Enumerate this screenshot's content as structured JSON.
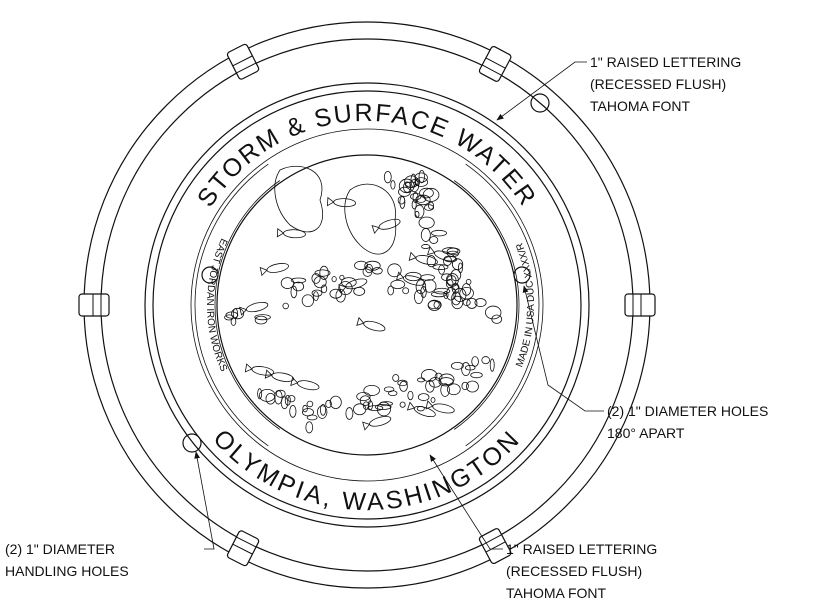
{
  "lid": {
    "top_text": "STORM & SURFACE WATER",
    "bottom_text": "OLYMPIA, WASHINGTON",
    "left_text": "EAST JORDAN IRON WORKS",
    "right_text": "MADE IN USA DUC XXXX/R"
  },
  "callouts": [
    {
      "lines": [
        "1\" RAISED LETTERING",
        "(RECESSED FLUSH)",
        "TAHOMA FONT"
      ]
    },
    {
      "lines": [
        "(2) 1\" DIAMETER HOLES",
        "180° APART"
      ]
    },
    {
      "lines": [
        "1\" RAISED LETTERING",
        "(RECESSED FLUSH)",
        "TAHOMA FONT"
      ]
    },
    {
      "lines": [
        "(2) 1\" DIAMETER",
        "HANDLING HOLES"
      ]
    }
  ]
}
